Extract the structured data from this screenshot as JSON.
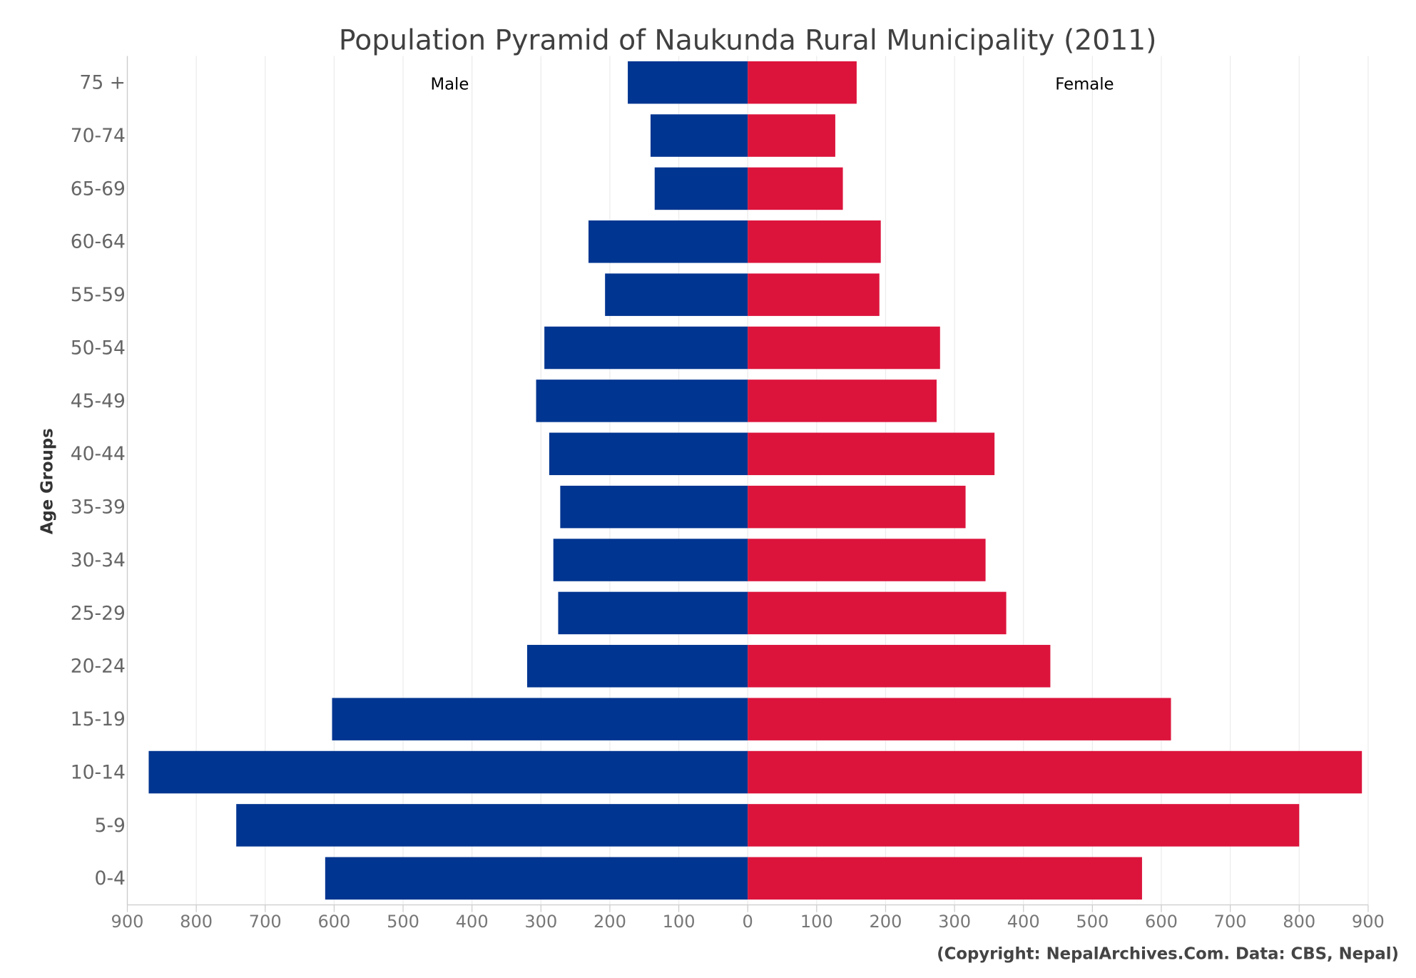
{
  "chart_data": {
    "type": "bar",
    "orientation": "horizontal-pyramid",
    "title": "Population Pyramid of Naukunda Rural Municipality (2011)",
    "ylabel": "Age Groups",
    "xlabel": "",
    "categories": [
      "75 +",
      "70-74",
      "65-69",
      "60-64",
      "55-59",
      "50-54",
      "45-49",
      "40-44",
      "35-39",
      "30-34",
      "25-29",
      "20-24",
      "15-19",
      "10-14",
      "5-9",
      "0-4"
    ],
    "series": [
      {
        "name": "Male",
        "color": "#003591",
        "values": [
          174,
          141,
          135,
          231,
          207,
          295,
          307,
          288,
          272,
          282,
          275,
          320,
          603,
          869,
          742,
          613
        ]
      },
      {
        "name": "Female",
        "color": "#DC143C",
        "values": [
          158,
          127,
          138,
          193,
          191,
          279,
          274,
          358,
          316,
          345,
          375,
          439,
          614,
          891,
          800,
          572
        ]
      }
    ],
    "xlim": [
      -900,
      900
    ],
    "xticks": [
      "900",
      "800",
      "700",
      "600",
      "500",
      "400",
      "300",
      "200",
      "100",
      "0",
      "100",
      "200",
      "300",
      "400",
      "500",
      "600",
      "700",
      "800",
      "900"
    ],
    "grid": true,
    "legend": "inline labels top-left (Male) and top-right (Female)",
    "footer": "(Copyright: NepalArchives.Com. Data: CBS, Nepal)"
  }
}
